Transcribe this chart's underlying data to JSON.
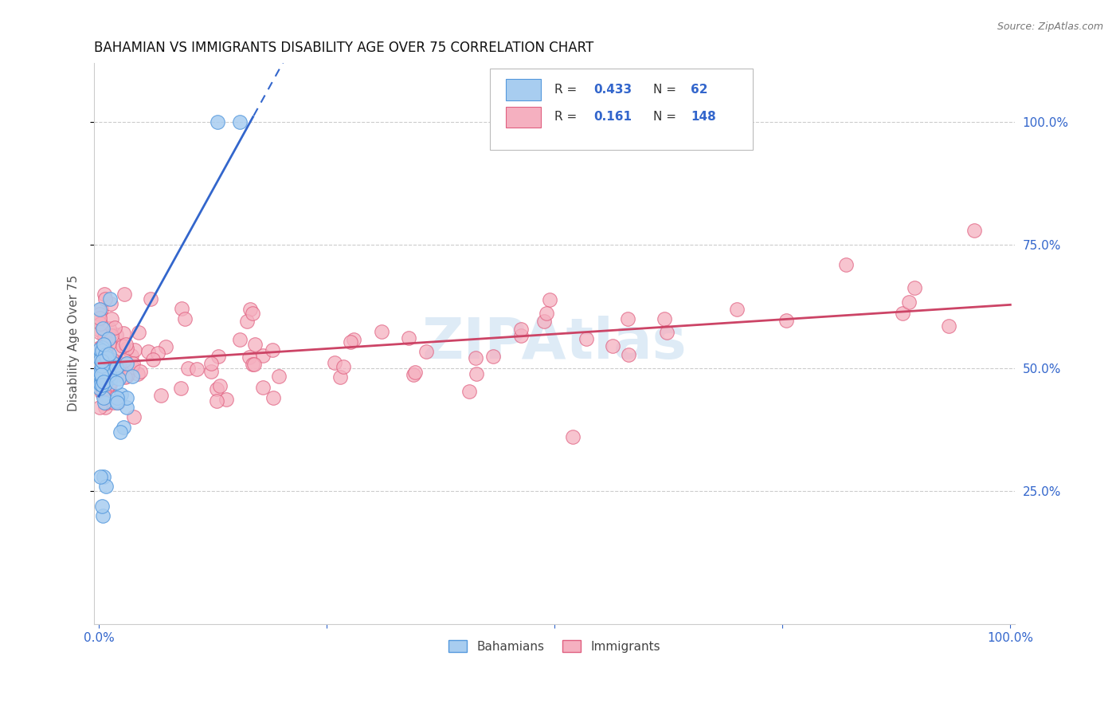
{
  "title": "BAHAMIAN VS IMMIGRANTS DISABILITY AGE OVER 75 CORRELATION CHART",
  "source": "Source: ZipAtlas.com",
  "ylabel": "Disability Age Over 75",
  "y_tick_labels": [
    "25.0%",
    "50.0%",
    "75.0%",
    "100.0%"
  ],
  "y_tick_positions": [
    0.25,
    0.5,
    0.75,
    1.0
  ],
  "legend_label1": "Bahamians",
  "legend_label2": "Immigrants",
  "R1": 0.433,
  "N1": 62,
  "R2": 0.161,
  "N2": 148,
  "color_bahamian_face": "#a8cdf0",
  "color_bahamian_edge": "#5599dd",
  "color_immigrant_face": "#f5b0c0",
  "color_immigrant_edge": "#e06080",
  "color_line_bahamian": "#3366cc",
  "color_line_immigrant": "#cc4466",
  "color_text_blue": "#3366cc",
  "watermark_color": "#c8dff0",
  "watermark_text": "ZIPAtlas",
  "box_bg": "white",
  "box_edge": "#cccccc",
  "grid_color": "#cccccc"
}
